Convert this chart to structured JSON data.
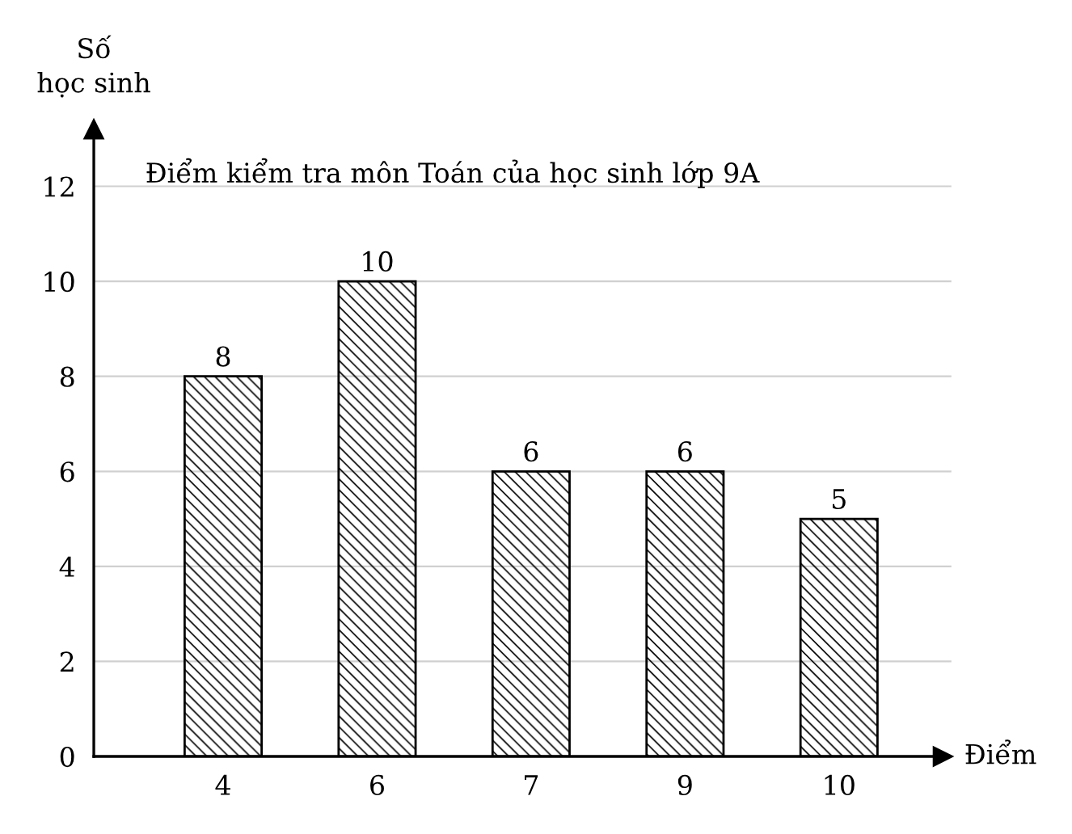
{
  "chart_data": {
    "type": "bar",
    "title": "Điểm kiểm tra môn Toán của học sinh lớp 9A",
    "xlabel": "Điểm",
    "ylabel": "Số\nhọc sinh",
    "categories": [
      "4",
      "6",
      "7",
      "9",
      "10"
    ],
    "values": [
      8,
      10,
      6,
      6,
      5
    ],
    "color": "#000000",
    "ylim": [
      0,
      13.2
    ],
    "yticks": [
      0,
      2,
      4,
      6,
      8,
      10,
      12
    ],
    "grid": "y",
    "data_labels": true
  }
}
